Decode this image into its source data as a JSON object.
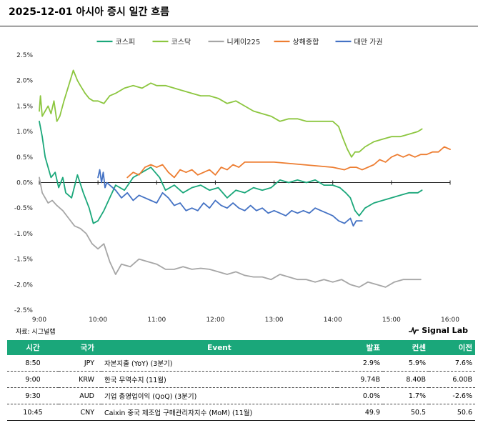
{
  "header": {
    "title": "2025-12-01 아시아 증시 일간 흐름"
  },
  "chart_data": {
    "type": "line",
    "title": "2025-12-01 아시아 증시 일간 흐름",
    "xlabel": "",
    "ylabel": "",
    "x_ticks": [
      "9:00",
      "10:00",
      "11:00",
      "12:00",
      "13:00",
      "14:00",
      "15:00",
      "16:00"
    ],
    "x_range_hours": [
      9,
      16
    ],
    "y_ticks": [
      "2.5%",
      "2.0%",
      "1.5%",
      "1.0%",
      "0.5%",
      "0.0%",
      "-0.5%",
      "-1.0%",
      "-1.5%",
      "-2.0%",
      "-2.5%"
    ],
    "ylim": [
      -2.5,
      2.5
    ],
    "legend_position": "top",
    "series": [
      {
        "name": "코스피",
        "color": "#1aa77a",
        "x": [
          9.0,
          9.05,
          9.1,
          9.15,
          9.2,
          9.27,
          9.33,
          9.4,
          9.45,
          9.55,
          9.65,
          9.75,
          9.85,
          9.92,
          10.0,
          10.1,
          10.2,
          10.3,
          10.45,
          10.6,
          10.75,
          10.9,
          11.05,
          11.15,
          11.3,
          11.45,
          11.6,
          11.75,
          11.9,
          12.05,
          12.2,
          12.35,
          12.5,
          12.65,
          12.8,
          12.95,
          13.1,
          13.25,
          13.4,
          13.55,
          13.7,
          13.85,
          14.0,
          14.12,
          14.22,
          14.3,
          14.38,
          14.45,
          14.55,
          14.7,
          14.85,
          15.0,
          15.15,
          15.3,
          15.45,
          15.52
        ],
        "y": [
          1.2,
          0.9,
          0.5,
          0.3,
          0.1,
          0.2,
          -0.1,
          0.1,
          -0.2,
          -0.3,
          0.15,
          -0.2,
          -0.5,
          -0.8,
          -0.75,
          -0.55,
          -0.3,
          -0.05,
          -0.15,
          0.1,
          0.2,
          0.3,
          0.1,
          -0.15,
          -0.05,
          -0.2,
          -0.1,
          -0.05,
          -0.15,
          -0.1,
          -0.3,
          -0.15,
          -0.2,
          -0.1,
          -0.15,
          -0.1,
          0.05,
          0.0,
          0.05,
          0.0,
          0.05,
          -0.05,
          -0.05,
          -0.1,
          -0.2,
          -0.3,
          -0.55,
          -0.65,
          -0.5,
          -0.4,
          -0.35,
          -0.3,
          -0.25,
          -0.2,
          -0.2,
          -0.15
        ]
      },
      {
        "name": "코스닥",
        "color": "#8cc63f",
        "x": [
          9.0,
          9.02,
          9.05,
          9.1,
          9.15,
          9.2,
          9.25,
          9.3,
          9.35,
          9.42,
          9.5,
          9.58,
          9.65,
          9.7,
          9.78,
          9.85,
          9.92,
          10.0,
          10.1,
          10.2,
          10.3,
          10.45,
          10.6,
          10.75,
          10.9,
          11.0,
          11.15,
          11.3,
          11.45,
          11.6,
          11.75,
          11.9,
          12.05,
          12.2,
          12.35,
          12.5,
          12.65,
          12.8,
          12.95,
          13.1,
          13.25,
          13.4,
          13.55,
          13.7,
          13.85,
          14.0,
          14.1,
          14.18,
          14.25,
          14.32,
          14.38,
          14.45,
          14.55,
          14.7,
          14.85,
          15.0,
          15.15,
          15.3,
          15.45,
          15.52
        ],
        "y": [
          1.4,
          1.7,
          1.3,
          1.4,
          1.5,
          1.35,
          1.6,
          1.2,
          1.3,
          1.6,
          1.9,
          2.2,
          2.0,
          1.9,
          1.75,
          1.65,
          1.6,
          1.6,
          1.55,
          1.7,
          1.75,
          1.85,
          1.9,
          1.85,
          1.95,
          1.9,
          1.9,
          1.85,
          1.8,
          1.75,
          1.7,
          1.7,
          1.65,
          1.55,
          1.6,
          1.5,
          1.4,
          1.35,
          1.3,
          1.2,
          1.25,
          1.25,
          1.2,
          1.2,
          1.2,
          1.2,
          1.1,
          0.85,
          0.65,
          0.5,
          0.6,
          0.6,
          0.7,
          0.8,
          0.85,
          0.9,
          0.9,
          0.95,
          1.0,
          1.05
        ]
      },
      {
        "name": "니케이225",
        "color": "#a6a6a6",
        "x": [
          9.0,
          9.05,
          9.1,
          9.15,
          9.22,
          9.3,
          9.4,
          9.5,
          9.6,
          9.7,
          9.8,
          9.9,
          10.0,
          10.1,
          10.2,
          10.3,
          10.4,
          10.55,
          10.7,
          10.85,
          11.0,
          11.15,
          11.3,
          11.45,
          11.6,
          11.75,
          11.9,
          12.05,
          12.2,
          12.35,
          12.5,
          12.65,
          12.8,
          12.95,
          13.1,
          13.25,
          13.4,
          13.55,
          13.7,
          13.85,
          14.0,
          14.15,
          14.3,
          14.45,
          14.6,
          14.75,
          14.9,
          15.05,
          15.2,
          15.35,
          15.5
        ],
        "y": [
          0.1,
          -0.2,
          -0.3,
          -0.4,
          -0.35,
          -0.45,
          -0.55,
          -0.7,
          -0.85,
          -0.9,
          -1.0,
          -1.2,
          -1.3,
          -1.2,
          -1.55,
          -1.8,
          -1.6,
          -1.65,
          -1.5,
          -1.55,
          -1.6,
          -1.7,
          -1.7,
          -1.65,
          -1.7,
          -1.68,
          -1.7,
          -1.75,
          -1.8,
          -1.75,
          -1.82,
          -1.85,
          -1.85,
          -1.9,
          -1.8,
          -1.85,
          -1.9,
          -1.9,
          -1.95,
          -1.9,
          -1.95,
          -1.9,
          -2.0,
          -2.05,
          -1.95,
          -2.0,
          -2.05,
          -1.95,
          -1.9,
          -1.9,
          -1.9
        ]
      },
      {
        "name": "상해종합",
        "color": "#ed7d31",
        "x": [
          10.5,
          10.6,
          10.7,
          10.8,
          10.9,
          11.0,
          11.1,
          11.2,
          11.3,
          11.4,
          11.5,
          11.6,
          11.7,
          11.8,
          11.9,
          12.0,
          12.1,
          12.2,
          12.3,
          12.4,
          12.5,
          13.0,
          13.5,
          14.0,
          14.2,
          14.3,
          14.4,
          14.5,
          14.6,
          14.7,
          14.8,
          14.9,
          15.0,
          15.1,
          15.2,
          15.3,
          15.4,
          15.5,
          15.6,
          15.7,
          15.8,
          15.9,
          16.0
        ],
        "y": [
          0.1,
          0.2,
          0.15,
          0.3,
          0.35,
          0.3,
          0.35,
          0.2,
          0.1,
          0.25,
          0.2,
          0.25,
          0.15,
          0.2,
          0.25,
          0.15,
          0.3,
          0.25,
          0.35,
          0.3,
          0.4,
          0.4,
          0.35,
          0.3,
          0.25,
          0.3,
          0.3,
          0.25,
          0.3,
          0.35,
          0.45,
          0.4,
          0.5,
          0.55,
          0.5,
          0.55,
          0.5,
          0.55,
          0.55,
          0.6,
          0.6,
          0.7,
          0.65
        ]
      },
      {
        "name": "대만 가권",
        "color": "#4472c4",
        "x": [
          10.0,
          10.03,
          10.06,
          10.09,
          10.12,
          10.15,
          10.2,
          10.3,
          10.4,
          10.5,
          10.6,
          10.7,
          10.8,
          10.9,
          11.0,
          11.1,
          11.2,
          11.3,
          11.4,
          11.5,
          11.6,
          11.7,
          11.8,
          11.9,
          12.0,
          12.1,
          12.2,
          12.3,
          12.4,
          12.5,
          12.6,
          12.7,
          12.8,
          12.9,
          13.0,
          13.1,
          13.2,
          13.3,
          13.4,
          13.5,
          13.6,
          13.7,
          13.8,
          13.9,
          14.0,
          14.1,
          14.2,
          14.3,
          14.35,
          14.4,
          14.45,
          14.5
        ],
        "y": [
          0.1,
          0.25,
          0.0,
          0.2,
          -0.1,
          0.0,
          -0.05,
          -0.15,
          -0.3,
          -0.2,
          -0.35,
          -0.25,
          -0.3,
          -0.35,
          -0.4,
          -0.2,
          -0.3,
          -0.45,
          -0.4,
          -0.55,
          -0.5,
          -0.55,
          -0.4,
          -0.5,
          -0.35,
          -0.45,
          -0.5,
          -0.4,
          -0.5,
          -0.55,
          -0.45,
          -0.55,
          -0.5,
          -0.6,
          -0.55,
          -0.6,
          -0.65,
          -0.55,
          -0.6,
          -0.55,
          -0.6,
          -0.5,
          -0.55,
          -0.6,
          -0.65,
          -0.75,
          -0.8,
          -0.7,
          -0.85,
          -0.75,
          -0.75,
          -0.75
        ]
      }
    ]
  },
  "footer": {
    "source": "자료: 시그널랩",
    "brand": "Signal Lab"
  },
  "events_table": {
    "headers": {
      "time": "시간",
      "country": "국가",
      "event": "Event",
      "actual": "발표",
      "consensus": "컨센",
      "previous": "이전"
    },
    "rows": [
      {
        "time": "8:50",
        "country": "JPY",
        "event": "자본지출 (YoY) (3분기)",
        "actual": "2.9%",
        "consensus": "5.9%",
        "previous": "7.6%"
      },
      {
        "time": "9:00",
        "country": "KRW",
        "event": "한국 무역수지 (11월)",
        "actual": "9.74B",
        "consensus": "8.40B",
        "previous": "6.00B"
      },
      {
        "time": "9:30",
        "country": "AUD",
        "event": "기업 총영업이익 (QoQ) (3분기)",
        "actual": "0.0%",
        "consensus": "1.7%",
        "previous": "-2.6%"
      },
      {
        "time": "10:45",
        "country": "CNY",
        "event": "Caixin 중국 제조업 구매관리자지수 (MoM) (11월)",
        "actual": "49.9",
        "consensus": "50.5",
        "previous": "50.6"
      }
    ]
  }
}
